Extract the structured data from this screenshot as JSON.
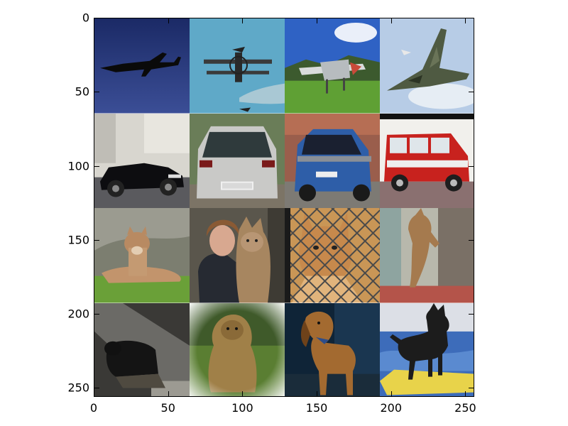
{
  "figure": {
    "x_ticks": [
      "0",
      "50",
      "100",
      "150",
      "200",
      "250"
    ],
    "y_ticks": [
      "0",
      "50",
      "100",
      "150",
      "200",
      "250"
    ],
    "tick_values": [
      0,
      50,
      100,
      150,
      200,
      250
    ],
    "extent": 256
  },
  "tiles": [
    {
      "row": 0,
      "col": 0,
      "subject": "airliner-silhouette",
      "sky": "#2a3a78"
    },
    {
      "row": 0,
      "col": 1,
      "subject": "biplane",
      "sky": "#5aa7c6"
    },
    {
      "row": 0,
      "col": 2,
      "subject": "small-plane-on-grass",
      "sky": "#2d5fc0"
    },
    {
      "row": 0,
      "col": 3,
      "subject": "delta-wing-jet",
      "sky": "#b9cee6"
    },
    {
      "row": 1,
      "col": 0,
      "subject": "black-convertible-car",
      "sky": "#d9d7d0"
    },
    {
      "row": 1,
      "col": 1,
      "subject": "silver-hatchback-car",
      "sky": "#6a7a58"
    },
    {
      "row": 1,
      "col": 2,
      "subject": "blue-smart-car",
      "sky": "#9a5a48"
    },
    {
      "row": 1,
      "col": 3,
      "subject": "red-minivan",
      "sky": "#f1f1ee"
    },
    {
      "row": 2,
      "col": 0,
      "subject": "cougar-lying",
      "sky": "#8a8a7a"
    },
    {
      "row": 2,
      "col": 1,
      "subject": "woman-hugging-lynx",
      "sky": "#6a6358"
    },
    {
      "row": 2,
      "col": 2,
      "subject": "caracal-behind-fence",
      "sky": "#b98a50"
    },
    {
      "row": 2,
      "col": 3,
      "subject": "cat-climbing-post",
      "sky": "#b7b7ab"
    },
    {
      "row": 3,
      "col": 0,
      "subject": "dark-dog-indoors",
      "sky": "#3a3a38"
    },
    {
      "row": 3,
      "col": 1,
      "subject": "shaggy-dog-sitting",
      "sky": "#6c8d3a"
    },
    {
      "row": 3,
      "col": 2,
      "subject": "bloodhound-standing",
      "sky": "#18324a"
    },
    {
      "row": 3,
      "col": 3,
      "subject": "dog-on-surfboard",
      "sky": "#4c78c6"
    }
  ]
}
